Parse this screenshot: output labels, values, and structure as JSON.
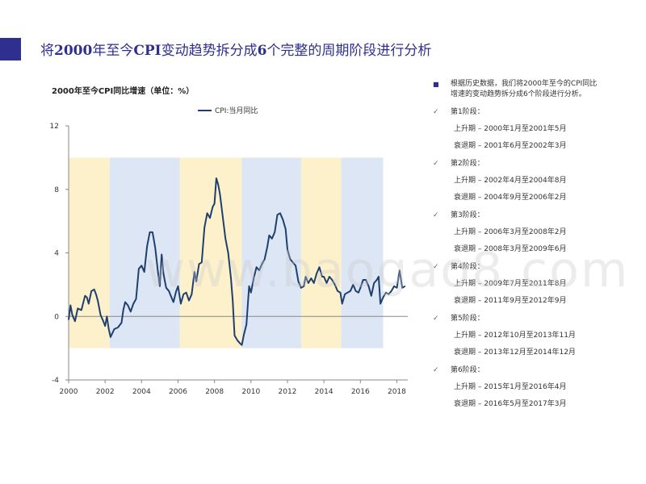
{
  "slide": {
    "title_parts": [
      "将",
      "2000",
      "年至今",
      "CPI",
      "变动趋势拆分成",
      "6",
      "个完整的周期阶段进行分析"
    ]
  },
  "chart_caption": "2000年至今CPI同比增速（单位：%）",
  "side": {
    "intro": "根据历史数据，我们将2000年至今的CPI同比增速的变动趋势拆分成6个阶段进行分析。",
    "stages": [
      {
        "title": "第1阶段：",
        "up": "上升期 – 2000年1月至2001年5月",
        "down": "衰退期 – 2001年6月至2002年3月"
      },
      {
        "title": "第2阶段：",
        "up": "上升期 – 2002年4月至2004年8月",
        "down": "衰退期 – 2004年9月至2006年2月"
      },
      {
        "title": "第3阶段：",
        "up": "上升期 – 2006年3月至2008年2月",
        "down": "衰退期 – 2008年3月至2009年6月"
      },
      {
        "title": "第4阶段：",
        "up": "上升期 – 2009年7月至2011年8月",
        "down": "衰退期 – 2011年9月至2012年9月"
      },
      {
        "title": "第5阶段：",
        "up": "上升期 – 2012年10月至2013年11月",
        "down": "衰退期 – 2013年12月至2014年12月"
      },
      {
        "title": "第6阶段：",
        "up": "上升期 – 2015年1月至2016年4月",
        "down": "衰退期 – 2016年5月至2017年3月"
      }
    ]
  },
  "watermark": "www.baogao8.com",
  "colors": {
    "accent": "#2e2f8f",
    "line": "#1f3f6e",
    "band_yellow": "#fdf1cc",
    "band_blue": "#dde6f4"
  },
  "chart_data": {
    "type": "line",
    "title": "2000年至今CPI同比增速（单位：%）",
    "legend": "CPI:当月同比",
    "legend_position": "top",
    "xlim": [
      2000,
      2018.6
    ],
    "ylim": [
      -4,
      12
    ],
    "x_ticks": [
      2000,
      2002,
      2004,
      2006,
      2008,
      2010,
      2012,
      2014,
      2016,
      2018
    ],
    "y_ticks": [
      -4,
      0,
      4,
      8,
      12
    ],
    "grid": false,
    "bands": [
      {
        "from": 2000.0,
        "to": 2002.25,
        "color": "yellow"
      },
      {
        "from": 2002.25,
        "to": 2006.1,
        "color": "blue"
      },
      {
        "from": 2006.1,
        "to": 2009.5,
        "color": "yellow"
      },
      {
        "from": 2009.5,
        "to": 2012.75,
        "color": "blue"
      },
      {
        "from": 2012.75,
        "to": 2014.95,
        "color": "yellow"
      },
      {
        "from": 2014.95,
        "to": 2017.25,
        "color": "blue"
      }
    ],
    "series": [
      {
        "name": "CPI:当月同比",
        "x": [
          2000.0,
          2000.1,
          2000.2,
          2000.35,
          2000.5,
          2000.7,
          2000.9,
          2001.0,
          2001.1,
          2001.25,
          2001.4,
          2001.5,
          2001.6,
          2001.75,
          2001.9,
          2002.0,
          2002.1,
          2002.2,
          2002.3,
          2002.5,
          2002.7,
          2002.9,
          2003.0,
          2003.1,
          2003.25,
          2003.4,
          2003.55,
          2003.7,
          2003.85,
          2004.0,
          2004.15,
          2004.3,
          2004.45,
          2004.6,
          2004.75,
          2004.9,
          2005.0,
          2005.1,
          2005.2,
          2005.35,
          2005.5,
          2005.6,
          2005.75,
          2005.9,
          2006.0,
          2006.15,
          2006.3,
          2006.45,
          2006.6,
          2006.75,
          2006.9,
          2007.0,
          2007.15,
          2007.3,
          2007.45,
          2007.6,
          2007.75,
          2007.9,
          2008.0,
          2008.1,
          2008.2,
          2008.3,
          2008.45,
          2008.6,
          2008.75,
          2008.9,
          2009.0,
          2009.1,
          2009.25,
          2009.4,
          2009.5,
          2009.6,
          2009.75,
          2009.9,
          2010.0,
          2010.15,
          2010.3,
          2010.45,
          2010.6,
          2010.75,
          2010.9,
          2011.0,
          2011.15,
          2011.3,
          2011.45,
          2011.6,
          2011.75,
          2011.9,
          2012.0,
          2012.15,
          2012.3,
          2012.45,
          2012.6,
          2012.75,
          2012.9,
          2013.0,
          2013.15,
          2013.3,
          2013.45,
          2013.6,
          2013.75,
          2013.9,
          2014.0,
          2014.15,
          2014.3,
          2014.45,
          2014.6,
          2014.75,
          2014.9,
          2015.0,
          2015.15,
          2015.3,
          2015.45,
          2015.6,
          2015.75,
          2015.9,
          2016.0,
          2016.15,
          2016.3,
          2016.45,
          2016.6,
          2016.75,
          2016.9,
          2017.0,
          2017.1,
          2017.25,
          2017.4,
          2017.55,
          2017.7,
          2017.85,
          2018.0,
          2018.15,
          2018.3,
          2018.45
        ],
        "y": [
          -0.2,
          0.7,
          0.1,
          -0.3,
          0.5,
          0.4,
          1.3,
          1.2,
          0.8,
          1.6,
          1.7,
          1.4,
          1.0,
          0.1,
          -0.3,
          -0.6,
          0.0,
          -0.8,
          -1.3,
          -0.8,
          -0.7,
          -0.4,
          0.4,
          0.9,
          0.7,
          0.3,
          0.8,
          1.1,
          3.0,
          3.2,
          2.8,
          4.4,
          5.3,
          5.3,
          4.3,
          2.8,
          1.9,
          3.9,
          2.7,
          1.8,
          1.6,
          1.3,
          0.9,
          1.6,
          1.9,
          0.8,
          1.4,
          1.5,
          1.0,
          1.4,
          2.8,
          2.2,
          3.3,
          3.4,
          5.6,
          6.5,
          6.2,
          6.9,
          7.1,
          8.7,
          8.3,
          7.7,
          6.3,
          4.9,
          4.0,
          2.4,
          1.0,
          -1.2,
          -1.5,
          -1.7,
          -1.8,
          -1.2,
          -0.5,
          1.9,
          1.5,
          2.4,
          3.1,
          2.9,
          3.3,
          3.6,
          4.4,
          5.1,
          4.9,
          5.3,
          6.4,
          6.5,
          6.1,
          5.5,
          4.2,
          3.6,
          3.4,
          3.2,
          2.2,
          1.8,
          1.9,
          2.5,
          2.1,
          2.4,
          2.1,
          2.7,
          3.1,
          2.5,
          2.5,
          2.1,
          2.5,
          2.3,
          2.0,
          1.6,
          1.5,
          0.8,
          1.4,
          1.5,
          1.6,
          2.0,
          1.6,
          1.5,
          1.8,
          2.3,
          2.3,
          1.9,
          1.3,
          2.1,
          2.3,
          2.5,
          0.8,
          1.2,
          1.5,
          1.4,
          1.6,
          1.9,
          1.8,
          2.9,
          1.8,
          1.9
        ]
      }
    ]
  }
}
